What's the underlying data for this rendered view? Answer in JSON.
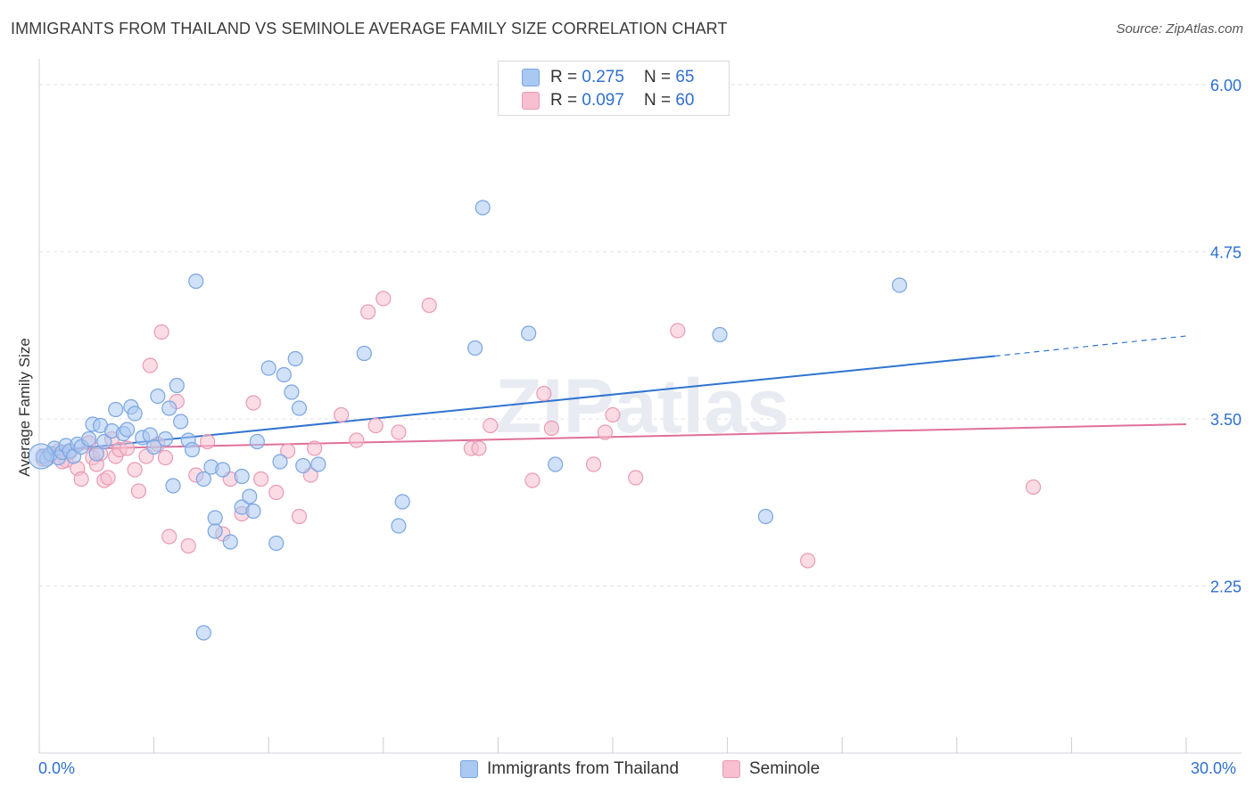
{
  "title": "IMMIGRANTS FROM THAILAND VS SEMINOLE AVERAGE FAMILY SIZE CORRELATION CHART",
  "source": "Source: ZipAtlas.com",
  "watermark": "ZIPatlas",
  "legend": {
    "rows": [
      {
        "r_label": "R =",
        "r_value": "0.275",
        "n_label": "N =",
        "n_value": "65"
      },
      {
        "r_label": "R =",
        "r_value": "0.097",
        "n_label": "N =",
        "n_value": "60"
      }
    ]
  },
  "bottom_legend": [
    "Immigrants from Thailand",
    "Seminole"
  ],
  "x_axis": {
    "min_label": "0.0%",
    "max_label": "30.0%"
  },
  "colors": {
    "blue_fill": "#a9c8f2",
    "blue_stroke": "#7aa6e0",
    "blue_line": "#2f74d0",
    "pink_fill": "#f7bfd0",
    "pink_stroke": "#e99ab4",
    "pink_line": "#e0709a",
    "grid": "#dfe3ea",
    "axis_text": "#2f6fd0"
  },
  "chart_data": {
    "type": "scatter",
    "title": "IMMIGRANTS FROM THAILAND VS SEMINOLE AVERAGE FAMILY SIZE CORRELATION CHART",
    "xlabel": "",
    "ylabel": "Average Family Size",
    "xlim": [
      0,
      30
    ],
    "ylim": [
      1.0,
      6.1
    ],
    "y_ticks": [
      6.0,
      4.75,
      3.5,
      2.25
    ],
    "y_tick_labels": [
      "6.00",
      "4.75",
      "3.50",
      "2.25"
    ],
    "x_tick_labels": [
      "0.0%",
      "30.0%"
    ],
    "grid": true,
    "legend_position": "top-center",
    "series": [
      {
        "name": "Immigrants from Thailand",
        "r": 0.275,
        "n": 65,
        "points": [
          [
            0.1,
            3.22
          ],
          [
            0.2,
            3.2
          ],
          [
            0.3,
            3.24
          ],
          [
            0.4,
            3.28
          ],
          [
            0.5,
            3.21
          ],
          [
            0.6,
            3.25
          ],
          [
            0.7,
            3.3
          ],
          [
            0.8,
            3.26
          ],
          [
            0.9,
            3.22
          ],
          [
            1.0,
            3.31
          ],
          [
            1.1,
            3.29
          ],
          [
            1.3,
            3.35
          ],
          [
            1.4,
            3.46
          ],
          [
            1.5,
            3.24
          ],
          [
            1.6,
            3.45
          ],
          [
            1.7,
            3.33
          ],
          [
            1.9,
            3.41
          ],
          [
            2.0,
            3.57
          ],
          [
            2.2,
            3.39
          ],
          [
            2.3,
            3.42
          ],
          [
            2.4,
            3.59
          ],
          [
            2.5,
            3.54
          ],
          [
            2.7,
            3.36
          ],
          [
            2.9,
            3.38
          ],
          [
            3.0,
            3.29
          ],
          [
            3.1,
            3.67
          ],
          [
            3.3,
            3.35
          ],
          [
            3.4,
            3.58
          ],
          [
            3.5,
            3.0
          ],
          [
            3.6,
            3.75
          ],
          [
            3.7,
            3.48
          ],
          [
            3.9,
            3.34
          ],
          [
            4.0,
            3.27
          ],
          [
            4.1,
            4.53
          ],
          [
            4.3,
            3.05
          ],
          [
            4.5,
            3.14
          ],
          [
            4.6,
            2.76
          ],
          [
            5.3,
            3.07
          ],
          [
            4.3,
            1.9
          ],
          [
            4.6,
            2.66
          ],
          [
            4.8,
            3.12
          ],
          [
            5.0,
            2.58
          ],
          [
            5.3,
            2.84
          ],
          [
            5.5,
            2.92
          ],
          [
            5.6,
            2.81
          ],
          [
            5.7,
            3.33
          ],
          [
            6.0,
            3.88
          ],
          [
            6.2,
            2.57
          ],
          [
            6.3,
            3.18
          ],
          [
            6.4,
            3.83
          ],
          [
            6.6,
            3.7
          ],
          [
            6.7,
            3.95
          ],
          [
            6.8,
            3.58
          ],
          [
            6.9,
            3.15
          ],
          [
            7.3,
            3.16
          ],
          [
            8.5,
            3.99
          ],
          [
            9.4,
            2.7
          ],
          [
            9.5,
            2.88
          ],
          [
            11.4,
            4.03
          ],
          [
            11.6,
            5.08
          ],
          [
            12.8,
            4.14
          ],
          [
            13.5,
            3.16
          ],
          [
            17.8,
            4.13
          ],
          [
            19.0,
            2.77
          ],
          [
            22.5,
            4.5
          ]
        ],
        "trend": {
          "x": [
            0,
            25
          ],
          "y": [
            3.25,
            3.97
          ],
          "dashed_extension": {
            "x": [
              25,
              30
            ],
            "y": [
              3.97,
              4.12
            ]
          }
        }
      },
      {
        "name": "Seminole",
        "r": 0.097,
        "n": 60,
        "points": [
          [
            0.1,
            3.2
          ],
          [
            0.3,
            3.23
          ],
          [
            0.5,
            3.26
          ],
          [
            0.7,
            3.19
          ],
          [
            0.8,
            3.25
          ],
          [
            1.0,
            3.13
          ],
          [
            1.1,
            3.05
          ],
          [
            1.3,
            3.32
          ],
          [
            1.4,
            3.21
          ],
          [
            1.5,
            3.16
          ],
          [
            1.6,
            3.24
          ],
          [
            1.7,
            3.04
          ],
          [
            1.8,
            3.06
          ],
          [
            1.9,
            3.35
          ],
          [
            2.0,
            3.22
          ],
          [
            2.1,
            3.27
          ],
          [
            2.3,
            3.28
          ],
          [
            2.5,
            3.12
          ],
          [
            2.6,
            2.96
          ],
          [
            2.8,
            3.22
          ],
          [
            2.9,
            3.9
          ],
          [
            3.1,
            3.31
          ],
          [
            3.2,
            4.15
          ],
          [
            3.3,
            3.21
          ],
          [
            3.4,
            2.62
          ],
          [
            3.6,
            3.63
          ],
          [
            3.9,
            2.55
          ],
          [
            4.1,
            3.08
          ],
          [
            4.4,
            3.33
          ],
          [
            4.8,
            2.64
          ],
          [
            5.0,
            3.05
          ],
          [
            5.3,
            2.79
          ],
          [
            5.6,
            3.62
          ],
          [
            5.8,
            3.05
          ],
          [
            6.2,
            2.95
          ],
          [
            6.5,
            3.26
          ],
          [
            6.8,
            2.77
          ],
          [
            7.1,
            3.08
          ],
          [
            7.2,
            3.28
          ],
          [
            7.9,
            3.53
          ],
          [
            8.3,
            3.34
          ],
          [
            8.6,
            4.3
          ],
          [
            8.8,
            3.45
          ],
          [
            9.0,
            4.4
          ],
          [
            9.4,
            3.4
          ],
          [
            10.2,
            4.35
          ],
          [
            11.3,
            3.28
          ],
          [
            11.5,
            3.28
          ],
          [
            11.8,
            3.45
          ],
          [
            12.9,
            3.04
          ],
          [
            13.2,
            3.69
          ],
          [
            13.4,
            3.43
          ],
          [
            14.5,
            3.16
          ],
          [
            14.8,
            3.4
          ],
          [
            15.0,
            3.53
          ],
          [
            15.6,
            3.06
          ],
          [
            16.7,
            4.16
          ],
          [
            20.1,
            2.44
          ],
          [
            26.0,
            2.99
          ],
          [
            0.6,
            3.18
          ]
        ],
        "trend": {
          "x": [
            0,
            30
          ],
          "y": [
            3.27,
            3.46
          ]
        }
      }
    ]
  }
}
